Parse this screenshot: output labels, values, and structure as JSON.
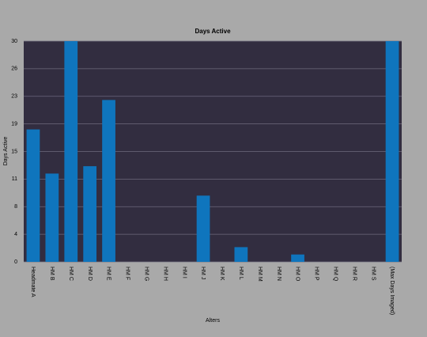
{
  "chart_data": {
    "type": "bar",
    "title": "Days Active",
    "x_label": "Alters",
    "y_label": "Days Active",
    "categories": [
      "Headmate A",
      "HM B",
      "HM C",
      "HM D",
      "HM E",
      "HM F",
      "HM G",
      "HM H",
      "HM I",
      "HM J",
      "HM K",
      "HM L",
      "HM M",
      "HM N",
      "HM O",
      "HM P",
      "HM Q",
      "HM R",
      "HM S",
      "(Max Days Imaged)"
    ],
    "values": [
      18,
      12,
      30,
      13,
      22,
      0,
      0,
      0,
      0,
      9,
      0,
      2,
      0,
      0,
      1,
      0,
      0,
      0,
      0,
      30
    ],
    "color": "#0f75bd",
    "ylim": [
      0,
      30
    ],
    "yticks": [
      0,
      {
        "value": 3.75,
        "label": "4"
      },
      {
        "value": 7.5,
        "label": "8"
      },
      {
        "value": 11.25,
        "label": "11"
      },
      15,
      {
        "value": 18.75,
        "label": "19"
      },
      {
        "value": 22.5,
        "label": "23"
      },
      {
        "value": 26.25,
        "label": "26"
      },
      30
    ],
    "grid": true
  }
}
